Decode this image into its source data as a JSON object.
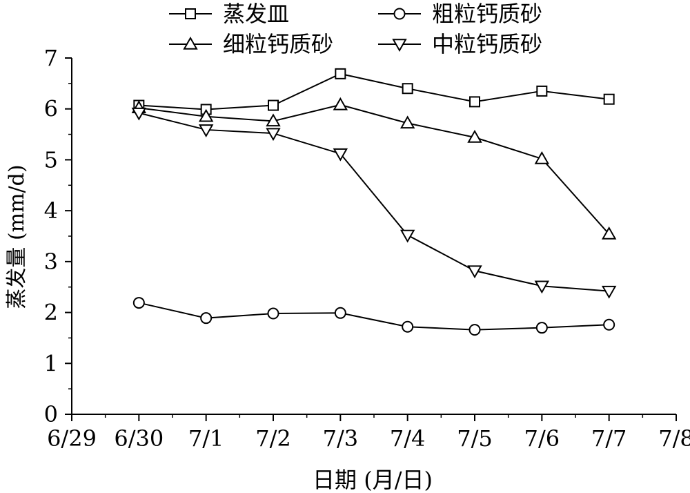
{
  "chart_data": {
    "type": "line",
    "xlabel": "日期 (月/日)",
    "ylabel": "蒸发量 (mm/d)",
    "x_ticks": [
      "6/29",
      "6/30",
      "7/1",
      "7/2",
      "7/3",
      "7/4",
      "7/5",
      "7/6",
      "7/7",
      "7/8"
    ],
    "categories": [
      "6/30",
      "7/1",
      "7/2",
      "7/3",
      "7/4",
      "7/5",
      "7/6",
      "7/7"
    ],
    "xlim": [
      "6/29",
      "7/8"
    ],
    "ylim": [
      0,
      7
    ],
    "y_ticks": [
      0,
      1,
      2,
      3,
      4,
      5,
      6,
      7
    ],
    "grid": false,
    "legend_position": "top",
    "series": [
      {
        "name": "蒸发皿",
        "marker": "square",
        "values": [
          6.07,
          5.99,
          6.07,
          6.69,
          6.4,
          6.14,
          6.35,
          6.19
        ]
      },
      {
        "name": "粗粒钙质砂",
        "marker": "circle",
        "values": [
          2.19,
          1.89,
          1.98,
          1.99,
          1.72,
          1.66,
          1.7,
          1.76
        ]
      },
      {
        "name": "细粒钙质砂",
        "marker": "triangle-up",
        "values": [
          6.02,
          5.85,
          5.76,
          6.08,
          5.72,
          5.44,
          5.02,
          3.54
        ]
      },
      {
        "name": "中粒钙质砂",
        "marker": "triangle-down",
        "values": [
          5.92,
          5.59,
          5.52,
          5.12,
          3.52,
          2.82,
          2.52,
          2.42
        ]
      }
    ]
  }
}
